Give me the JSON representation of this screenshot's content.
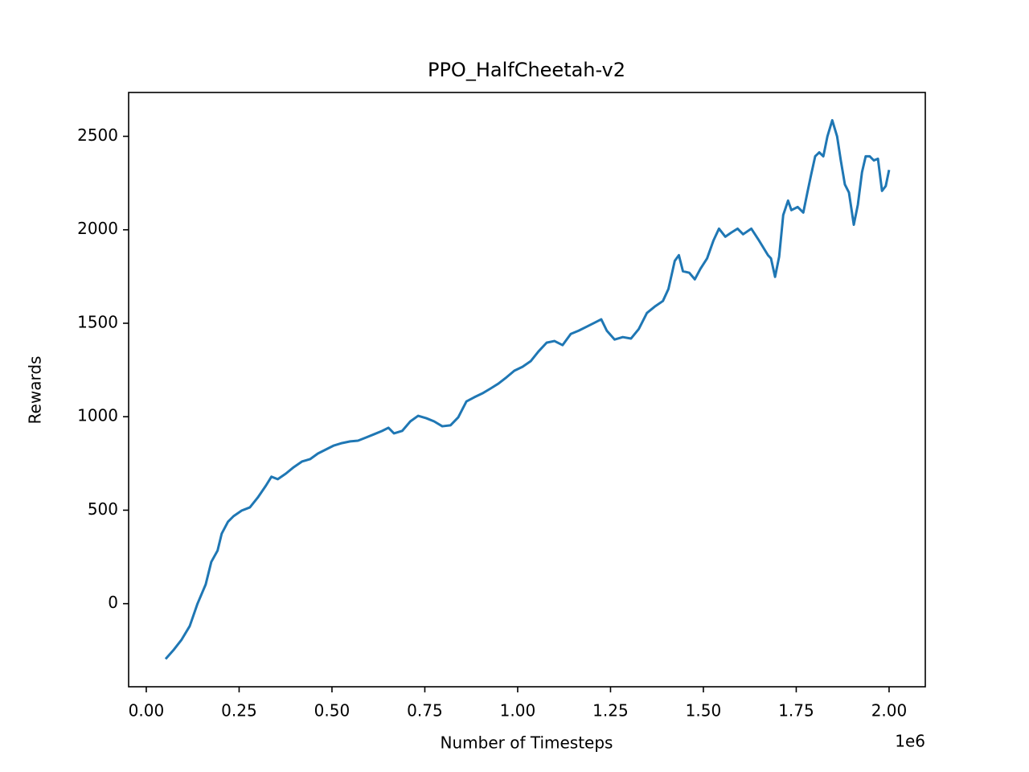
{
  "chart_data": {
    "type": "line",
    "title": "PPO_HalfCheetah-v2",
    "x_label": "Number of Timesteps",
    "y_label": "Rewards",
    "x_offset_text": "1e6",
    "x": [
      0.052,
      0.073,
      0.095,
      0.117,
      0.138,
      0.16,
      0.175,
      0.192,
      0.203,
      0.22,
      0.235,
      0.257,
      0.279,
      0.3,
      0.322,
      0.337,
      0.354,
      0.376,
      0.397,
      0.419,
      0.441,
      0.462,
      0.484,
      0.505,
      0.527,
      0.549,
      0.57,
      0.592,
      0.613,
      0.635,
      0.652,
      0.667,
      0.689,
      0.711,
      0.732,
      0.754,
      0.775,
      0.797,
      0.819,
      0.84,
      0.862,
      0.883,
      0.905,
      0.927,
      0.948,
      0.97,
      0.991,
      1.013,
      1.035,
      1.056,
      1.078,
      1.099,
      1.121,
      1.143,
      1.164,
      1.186,
      1.207,
      1.225,
      1.24,
      1.261,
      1.283,
      1.305,
      1.326,
      1.348,
      1.369,
      1.391,
      1.406,
      1.423,
      1.434,
      1.445,
      1.462,
      1.477,
      1.492,
      1.51,
      1.527,
      1.542,
      1.559,
      1.575,
      1.592,
      1.607,
      1.629,
      1.65,
      1.674,
      1.682,
      1.693,
      1.704,
      1.715,
      1.728,
      1.737,
      1.754,
      1.769,
      1.78,
      1.79,
      1.801,
      1.812,
      1.823,
      1.834,
      1.847,
      1.86,
      1.87,
      1.881,
      1.892,
      1.905,
      1.916,
      1.927,
      1.937,
      1.948,
      1.959,
      1.97,
      1.981,
      1.991,
      2.0
    ],
    "series": [
      {
        "color": "#1f77b4",
        "values": [
          -296,
          -249,
          -193,
          -120,
          0,
          103,
          223,
          284,
          374,
          438,
          468,
          498,
          515,
          567,
          631,
          679,
          666,
          696,
          730,
          760,
          773,
          803,
          825,
          846,
          859,
          868,
          872,
          889,
          906,
          924,
          941,
          911,
          924,
          975,
          1005,
          992,
          975,
          949,
          954,
          997,
          1082,
          1104,
          1125,
          1151,
          1177,
          1211,
          1246,
          1267,
          1297,
          1349,
          1396,
          1405,
          1383,
          1443,
          1460,
          1482,
          1503,
          1521,
          1460,
          1413,
          1426,
          1418,
          1469,
          1555,
          1589,
          1619,
          1684,
          1834,
          1864,
          1778,
          1770,
          1735,
          1791,
          1847,
          1942,
          2006,
          1963,
          1985,
          2006,
          1976,
          2006,
          1942,
          1864,
          1847,
          1748,
          1856,
          2079,
          2156,
          2105,
          2122,
          2092,
          2199,
          2294,
          2393,
          2414,
          2393,
          2500,
          2586,
          2500,
          2371,
          2242,
          2199,
          2027,
          2135,
          2307,
          2393,
          2393,
          2371,
          2380,
          2208,
          2234,
          2320
        ]
      }
    ],
    "xlim": [
      -0.0475,
      2.0975
    ],
    "ylim": [
      -444.5,
      2734.5
    ],
    "xticks": [
      {
        "value": 0,
        "label": "0.00"
      },
      {
        "value": 0.25,
        "label": "0.25"
      },
      {
        "value": 0.5,
        "label": "0.50"
      },
      {
        "value": 0.75,
        "label": "0.75"
      },
      {
        "value": 1,
        "label": "1.00"
      },
      {
        "value": 1.25,
        "label": "1.25"
      },
      {
        "value": 1.5,
        "label": "1.50"
      },
      {
        "value": 1.75,
        "label": "1.75"
      },
      {
        "value": 2,
        "label": "2.00"
      }
    ],
    "yticks": [
      0,
      500,
      1000,
      1500,
      2000,
      2500
    ]
  }
}
